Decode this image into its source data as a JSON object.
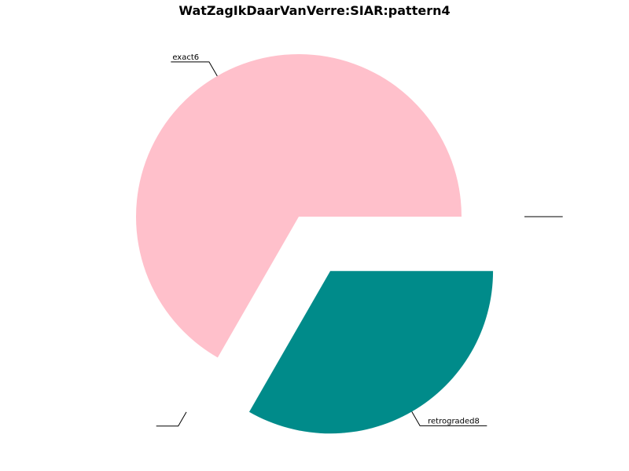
{
  "chart_data": {
    "type": "pie",
    "title": "WatZagIkDaarVanVerre:SIAR:pattern4",
    "slices": [
      {
        "label": "exact6",
        "value": 66.7,
        "color": "#ffc0cb",
        "exploded": false
      },
      {
        "label": "",
        "value": 0,
        "color": "#ffffff",
        "exploded": true
      },
      {
        "label": "retrograded8",
        "value": 33.3,
        "color": "#008b8a",
        "exploded": true
      },
      {
        "label": "",
        "value": 0,
        "color": "#ffffff",
        "exploded": true
      }
    ],
    "start_angle_deg": 0,
    "direction": "counterclockwise",
    "legend": "none"
  }
}
